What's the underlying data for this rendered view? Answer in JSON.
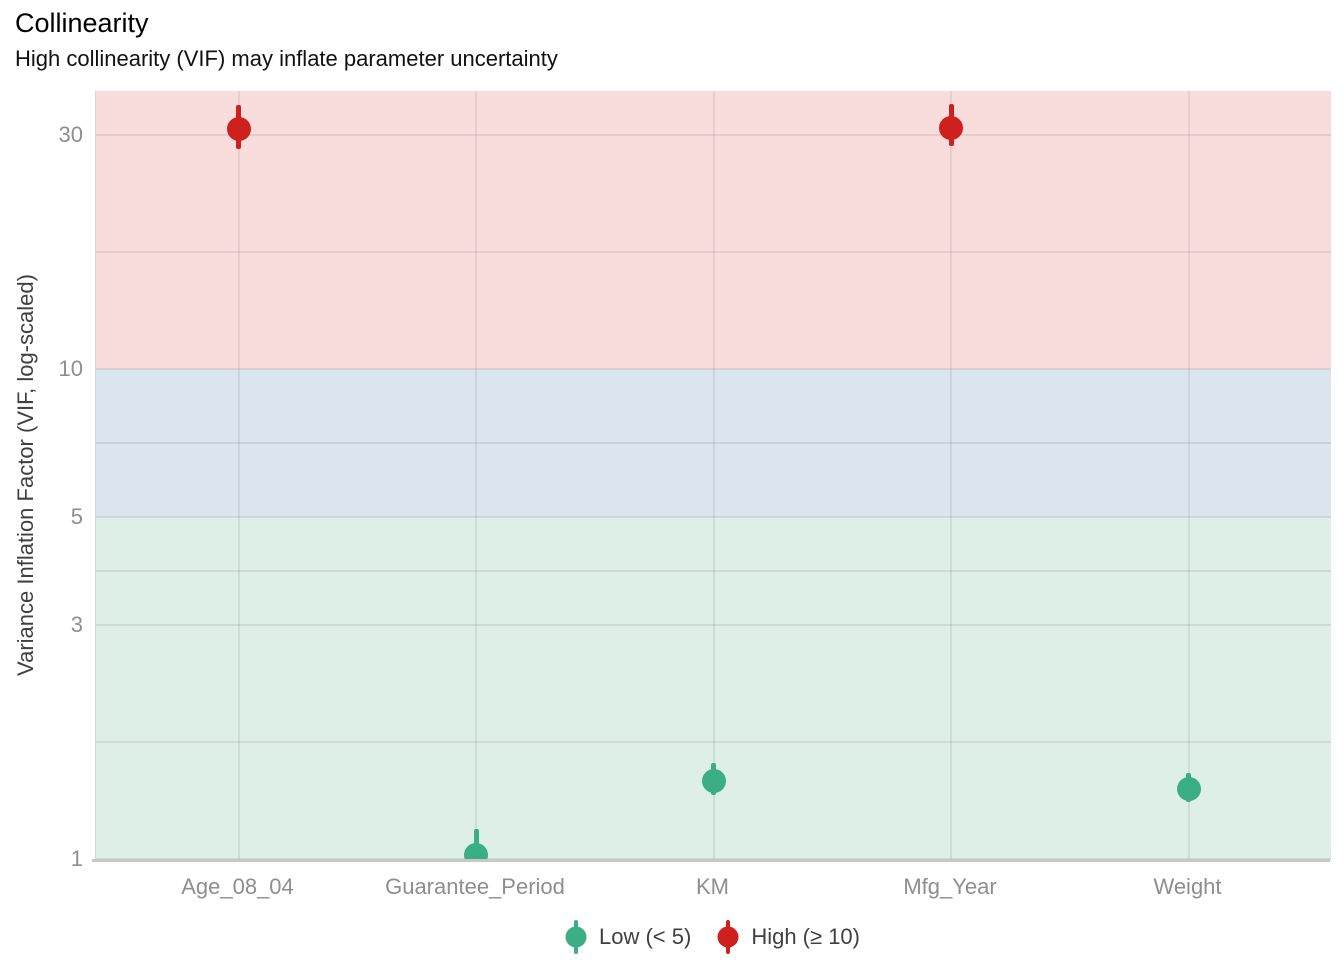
{
  "title": "Collinearity",
  "subtitle": "High collinearity (VIF) may inflate parameter uncertainty",
  "y_axis": {
    "label": "Variance Inflation Factor (VIF, log-scaled)",
    "scale": "log10",
    "tick_labels": [
      "30",
      "10",
      "5",
      "3",
      "1"
    ]
  },
  "x_axis": {
    "tick_labels": [
      "Age_08_04",
      "Guarantee_Period",
      "KM",
      "Mfg_Year",
      "Weight"
    ]
  },
  "legend": {
    "position": "bottom",
    "order": [
      "low",
      "high"
    ]
  },
  "chart_data": {
    "type": "scatter",
    "mark": "pointrange",
    "title": "Collinearity",
    "subtitle": "High collinearity (VIF) may inflate parameter uncertainty",
    "xlabel": "",
    "ylabel": "Variance Inflation Factor (VIF, log-scaled)",
    "yscale": "log10",
    "ylim": [
      1,
      36.9
    ],
    "y_major_ticks": [
      30,
      10,
      5,
      3,
      1
    ],
    "y_minor_gridlines": [
      17.32,
      7.07,
      3.87,
      1.73
    ],
    "grid": true,
    "legend_position": "bottom",
    "categories": [
      "Age_08_04",
      "Guarantee_Period",
      "KM",
      "Mfg_Year",
      "Weight"
    ],
    "series": [
      {
        "name": "VIF",
        "values": [
          30.9,
          1.02,
          1.44,
          31.0,
          1.39
        ],
        "ci_low": [
          28.1,
          0.95,
          1.35,
          28.5,
          1.31
        ],
        "ci_high": [
          34.5,
          1.15,
          1.57,
          34.7,
          1.5
        ],
        "group": [
          "high",
          "low",
          "low",
          "high",
          "low"
        ]
      }
    ],
    "groups": {
      "low": {
        "label": "Low (< 5)",
        "color": "#3aaf85"
      },
      "high": {
        "label": "High (≥ 10)",
        "color": "#cd201f"
      }
    },
    "bands": [
      {
        "name": "high",
        "from": 10,
        "to": 36.9,
        "color": "#f9dddd"
      },
      {
        "name": "moderate",
        "from": 5,
        "to": 10,
        "color": "#dbe5ef"
      },
      {
        "name": "low",
        "from": 1,
        "to": 5,
        "color": "#deefe7"
      }
    ]
  }
}
